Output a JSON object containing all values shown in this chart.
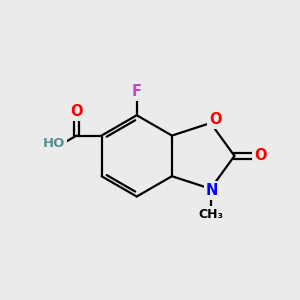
{
  "bg_color": "#ebebeb",
  "bond_color": "#000000",
  "bond_width": 1.6,
  "atom_colors": {
    "O": "#ff0000",
    "N": "#0000ff",
    "F": "#cc44cc",
    "C": "#000000",
    "H": "#5a9090"
  },
  "figsize": [
    3.0,
    3.0
  ],
  "dpi": 100
}
